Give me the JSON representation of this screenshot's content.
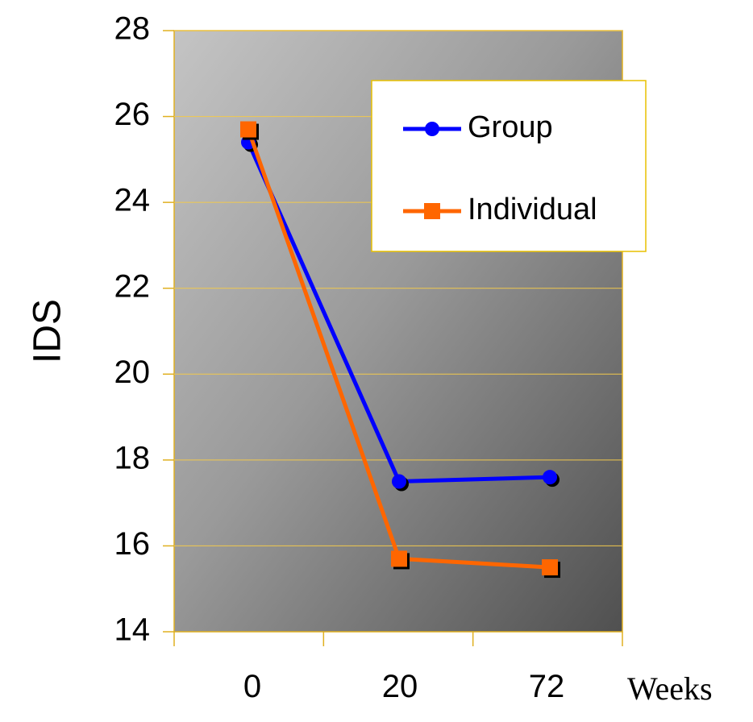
{
  "chart_data": {
    "type": "line",
    "categories": [
      "0",
      "20",
      "72"
    ],
    "xunit_label": "Weeks",
    "ylabel": "IDS",
    "ylim": [
      14,
      28
    ],
    "yticks": [
      14,
      16,
      18,
      20,
      22,
      24,
      26,
      28
    ],
    "grid": true,
    "legend_position": "top-right",
    "series": [
      {
        "name": "Group",
        "values": [
          25.4,
          17.5,
          17.6
        ],
        "color": "#0000ff",
        "marker": "circle"
      },
      {
        "name": "Individual",
        "values": [
          25.7,
          15.7,
          15.5
        ],
        "color": "#ff6600",
        "marker": "square"
      }
    ],
    "colors": {
      "gridline": "#f2c94c",
      "plot_border": "#e0b020",
      "legend_border": "#e8c000"
    }
  }
}
